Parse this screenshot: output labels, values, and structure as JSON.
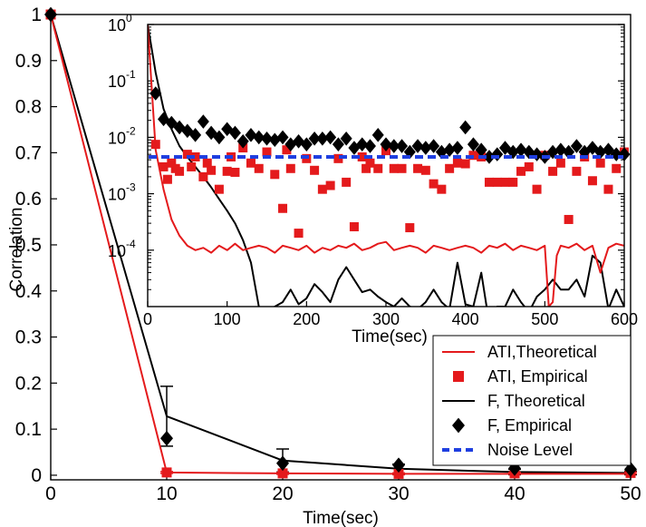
{
  "chart_data": [
    {
      "type": "line",
      "title": "",
      "xlabel": "Time(sec)",
      "ylabel": "Correlation",
      "xlim": [
        0,
        50
      ],
      "ylim": [
        -0.01,
        1.0
      ],
      "x_ticks": [
        0,
        10,
        20,
        30,
        40,
        50
      ],
      "y_ticks": [
        0,
        0.1,
        0.2,
        0.3,
        0.4,
        0.5,
        0.6,
        0.7,
        0.8,
        0.9,
        1
      ],
      "x_tick_labels": [
        "0",
        "10",
        "20",
        "30",
        "40",
        "50"
      ],
      "y_tick_labels": [
        "0",
        "0.1",
        "0.2",
        "0.3",
        "0.4",
        "0.5",
        "0.6",
        "0.7",
        "0.8",
        "0.9",
        "1"
      ],
      "series": [
        {
          "name": "ATI,Theoretical",
          "style": "line",
          "color": "#e41a1c",
          "x": [
            0,
            10,
            20,
            30,
            40,
            50
          ],
          "y": [
            1.0,
            0.006,
            0.004,
            0.003,
            0.003,
            0.003
          ]
        },
        {
          "name": "ATI, Empirical",
          "style": "square",
          "color": "#e41a1c",
          "x": [
            0,
            10,
            20,
            30,
            40,
            50
          ],
          "y": [
            1.0,
            0.006,
            0.004,
            0.003,
            0.004,
            0.005
          ],
          "err": [
            0,
            0.002,
            0.002,
            0.002,
            0.002,
            0.002
          ]
        },
        {
          "name": "F, Theoretical",
          "style": "line",
          "color": "#000000",
          "x": [
            0,
            10,
            20,
            30,
            40,
            50
          ],
          "y": [
            1.0,
            0.128,
            0.032,
            0.014,
            0.007,
            0.005
          ],
          "err": [
            0,
            0.065,
            0.025,
            0.01,
            0.006,
            0.004
          ]
        },
        {
          "name": "F, Empirical",
          "style": "diamond",
          "color": "#000000",
          "x": [
            0,
            10,
            20,
            30,
            40,
            50
          ],
          "y": [
            1.0,
            0.08,
            0.026,
            0.022,
            0.015,
            0.013
          ]
        }
      ],
      "legend": {
        "position": "bottom-right",
        "entries": [
          {
            "label": "ATI,Theoretical",
            "marker": "line",
            "color": "#e41a1c"
          },
          {
            "label": "ATI, Empirical",
            "marker": "square",
            "color": "#e41a1c"
          },
          {
            "label": "F, Theoretical",
            "marker": "line",
            "color": "#000000"
          },
          {
            "label": "F, Empirical",
            "marker": "diamond",
            "color": "#000000"
          },
          {
            "label": "Noise Level",
            "marker": "dashed",
            "color": "#1f3fe0"
          }
        ]
      }
    },
    {
      "type": "line",
      "title": "",
      "xlabel": "Time(sec)",
      "ylabel": "",
      "yscale": "log",
      "xlim": [
        0,
        600
      ],
      "ylim": [
        1e-05,
        1
      ],
      "x_ticks": [
        0,
        100,
        200,
        300,
        400,
        500,
        600
      ],
      "x_tick_labels": [
        "0",
        "100",
        "200",
        "300",
        "400",
        "500",
        "600"
      ],
      "y_tick_labels": [
        {
          "base": "10",
          "exp": "0"
        },
        {
          "base": "10",
          "exp": "-1"
        },
        {
          "base": "10",
          "exp": "-2"
        },
        {
          "base": "10",
          "exp": "-3"
        },
        {
          "base": "10",
          "exp": "-4"
        }
      ],
      "noise_level": 0.0045,
      "series": [
        {
          "name": "ATI,Theoretical",
          "style": "line",
          "color": "#e41a1c",
          "x": [
            0,
            10,
            20,
            30,
            40,
            50,
            60,
            70,
            80,
            90,
            100,
            110,
            120,
            130,
            140,
            150,
            160,
            170,
            180,
            190,
            200,
            210,
            220,
            230,
            240,
            250,
            260,
            270,
            280,
            290,
            300,
            310,
            320,
            330,
            340,
            350,
            360,
            370,
            380,
            390,
            400,
            410,
            420,
            430,
            440,
            450,
            460,
            470,
            480,
            490,
            500,
            505,
            510,
            515,
            520,
            530,
            540,
            550,
            560,
            570,
            580,
            590,
            600
          ],
          "y": [
            1.0,
            0.006,
            0.0012,
            0.00035,
            0.00018,
            0.00012,
            0.0001,
            0.00011,
            9e-05,
            0.00012,
            0.0001,
            0.00013,
            0.0001,
            0.00011,
            0.00012,
            0.00011,
            9e-05,
            0.00012,
            0.00011,
            0.0001,
            0.00012,
            9e-05,
            0.00011,
            0.0001,
            0.00012,
            0.00011,
            0.00013,
            0.0001,
            0.00011,
            0.00013,
            0.00014,
            0.0001,
            0.00011,
            0.00012,
            0.00011,
            9e-05,
            0.00012,
            0.00011,
            0.0001,
            0.00011,
            0.00012,
            0.00011,
            9e-05,
            0.00012,
            0.00011,
            0.00013,
            0.0001,
            0.00012,
            0.00011,
            0.0001,
            0.00012,
            1e-05,
            1.2e-05,
            8e-05,
            0.00012,
            0.00011,
            0.00013,
            0.0001,
            0.00012,
            4e-05,
            0.00011,
            0.00013,
            0.00012
          ]
        },
        {
          "name": "ATI, Empirical",
          "style": "square",
          "color": "#e41a1c",
          "x": [
            10,
            20,
            25,
            30,
            35,
            40,
            50,
            55,
            60,
            70,
            75,
            80,
            90,
            100,
            105,
            110,
            120,
            130,
            140,
            150,
            160,
            170,
            175,
            180,
            190,
            200,
            210,
            220,
            230,
            240,
            250,
            260,
            270,
            275,
            280,
            290,
            300,
            310,
            320,
            330,
            340,
            350,
            360,
            370,
            380,
            390,
            400,
            410,
            420,
            430,
            440,
            450,
            460,
            470,
            480,
            490,
            500,
            510,
            520,
            530,
            540,
            550,
            560,
            570,
            580,
            590,
            600
          ],
          "y": [
            0.0075,
            0.003,
            0.0018,
            0.0035,
            0.0028,
            0.0025,
            0.005,
            0.003,
            0.0045,
            0.002,
            0.0035,
            0.0026,
            0.0012,
            0.0025,
            0.0045,
            0.0024,
            0.0065,
            0.0035,
            0.0028,
            0.0055,
            0.0022,
            0.00055,
            0.006,
            0.0028,
            0.0002,
            0.0042,
            0.0026,
            0.0012,
            0.0014,
            0.0042,
            0.0016,
            0.00026,
            0.0045,
            0.0028,
            0.0035,
            0.0028,
            0.0058,
            0.0028,
            0.0028,
            0.00025,
            0.0028,
            0.0026,
            0.0015,
            0.0012,
            0.0028,
            0.0035,
            0.0034,
            0.0048,
            0.0045,
            0.0016,
            0.0016,
            0.0016,
            0.0016,
            0.0025,
            0.003,
            0.0012,
            0.0048,
            0.0025,
            0.0035,
            0.00035,
            0.0025,
            0.0045,
            0.0017,
            0.0035,
            0.0012,
            0.0028,
            0.0055
          ]
        },
        {
          "name": "F, Theoretical",
          "style": "line",
          "color": "#000000",
          "x": [
            0,
            10,
            20,
            30,
            40,
            50,
            60,
            70,
            80,
            90,
            100,
            110,
            120,
            130,
            140,
            150,
            160,
            170,
            180,
            190,
            200,
            210,
            220,
            230,
            240,
            250,
            260,
            270,
            280,
            290,
            300,
            310,
            320,
            330,
            340,
            350,
            360,
            370,
            380,
            390,
            400,
            410,
            420,
            430,
            440,
            450,
            460,
            470,
            480,
            490,
            500,
            510,
            520,
            530,
            540,
            550,
            560,
            570,
            580,
            590,
            600
          ],
          "y": [
            1.0,
            0.14,
            0.032,
            0.014,
            0.007,
            0.0045,
            0.003,
            0.002,
            0.0013,
            0.0008,
            0.0005,
            0.0003,
            0.00015,
            6e-05,
            1e-05,
            8e-06,
            1e-05,
            1.2e-05,
            2e-05,
            1.1e-05,
            1.4e-05,
            2.5e-05,
            1.8e-05,
            1.2e-05,
            3e-05,
            5e-05,
            3e-05,
            1.8e-05,
            2e-05,
            1.5e-05,
            1.2e-05,
            1e-05,
            1.4e-05,
            1e-05,
            9e-06,
            1.2e-05,
            2e-05,
            1.2e-05,
            9e-06,
            6e-05,
            1.1e-05,
            1e-05,
            4e-05,
            5e-06,
            1e-05,
            1e-05,
            2e-05,
            1.2e-05,
            8e-06,
            1.5e-05,
            2e-05,
            3e-05,
            2e-05,
            2e-05,
            3e-05,
            1.5e-05,
            8e-05,
            6e-05,
            9e-06,
            2e-05,
            1e-05
          ]
        },
        {
          "name": "F, Empirical",
          "style": "diamond",
          "color": "#000000",
          "x": [
            10,
            20,
            30,
            40,
            50,
            60,
            70,
            80,
            90,
            100,
            110,
            120,
            130,
            140,
            150,
            160,
            170,
            180,
            190,
            200,
            210,
            220,
            230,
            240,
            250,
            260,
            270,
            280,
            290,
            300,
            310,
            320,
            330,
            340,
            350,
            360,
            370,
            380,
            390,
            400,
            410,
            420,
            430,
            440,
            450,
            460,
            470,
            480,
            490,
            500,
            510,
            520,
            530,
            540,
            550,
            560,
            570,
            580,
            590,
            600
          ],
          "y": [
            0.06,
            0.021,
            0.018,
            0.015,
            0.013,
            0.011,
            0.019,
            0.012,
            0.01,
            0.014,
            0.012,
            0.0085,
            0.011,
            0.01,
            0.0095,
            0.009,
            0.01,
            0.0075,
            0.0085,
            0.0075,
            0.0095,
            0.0095,
            0.01,
            0.0075,
            0.0095,
            0.0065,
            0.0075,
            0.007,
            0.011,
            0.0075,
            0.007,
            0.007,
            0.0055,
            0.007,
            0.0065,
            0.007,
            0.0055,
            0.006,
            0.0065,
            0.015,
            0.0075,
            0.006,
            0.0045,
            0.005,
            0.0065,
            0.0055,
            0.006,
            0.0055,
            0.005,
            0.0045,
            0.0055,
            0.006,
            0.0055,
            0.007,
            0.0055,
            0.0065,
            0.0055,
            0.006,
            0.005,
            0.005
          ]
        }
      ]
    }
  ]
}
